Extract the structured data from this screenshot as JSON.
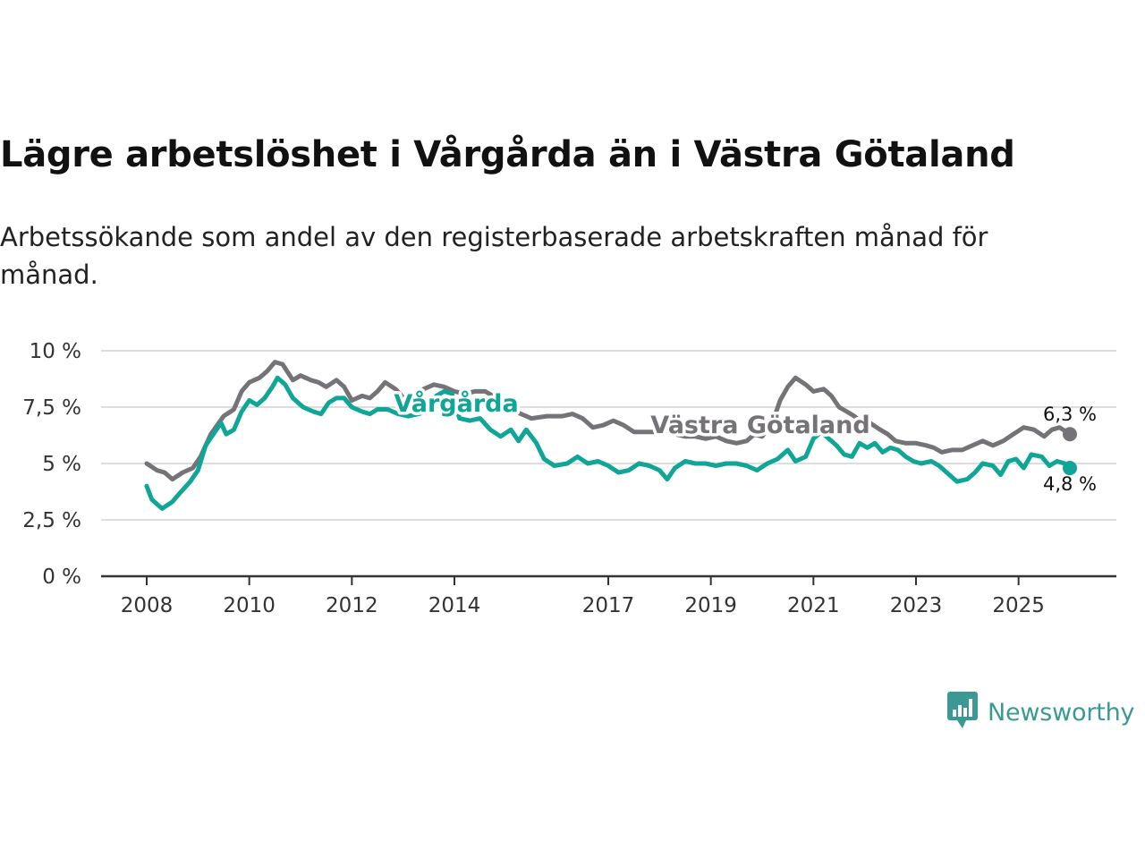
{
  "title": "Lägre arbetslöshet i Vårgårda än i Västra Götaland",
  "subtitle": "Arbetssökande som andel av den registerbaserade arbetskraften månad för månad.",
  "brand": {
    "name": "Newsworthy",
    "icon": "newsworthy-logo-icon"
  },
  "colors": {
    "vastra": "#757377",
    "vargarda": "#0fa697",
    "grid": "#dddddd",
    "axis": "#333333"
  },
  "chart_data": {
    "type": "line",
    "title": "Lägre arbetslöshet i Vårgårda än i Västra Götaland",
    "xlabel": "",
    "ylabel": "",
    "ylim": [
      0,
      10
    ],
    "xlim": [
      2008,
      2026.2
    ],
    "y_ticks": [
      {
        "value": 0,
        "label": "0 %"
      },
      {
        "value": 2.5,
        "label": "2,5 %"
      },
      {
        "value": 5,
        "label": "5 %"
      },
      {
        "value": 7.5,
        "label": "7,5 %"
      },
      {
        "value": 10,
        "label": "10 %"
      }
    ],
    "x_ticks": [
      {
        "value": 2008,
        "label": "2008"
      },
      {
        "value": 2010,
        "label": "2010"
      },
      {
        "value": 2012,
        "label": "2012"
      },
      {
        "value": 2014,
        "label": "2014"
      },
      {
        "value": 2017,
        "label": "2017"
      },
      {
        "value": 2019,
        "label": "2019"
      },
      {
        "value": 2021,
        "label": "2021"
      },
      {
        "value": 2023,
        "label": "2023"
      },
      {
        "value": 2025,
        "label": "2025"
      }
    ],
    "series": [
      {
        "name": "Västra Götaland",
        "color": "#757377",
        "end_label": "6,3 %",
        "points": [
          [
            2008,
            5.0
          ],
          [
            2008.2,
            4.7
          ],
          [
            2008.35,
            4.6
          ],
          [
            2008.5,
            4.3
          ],
          [
            2008.7,
            4.6
          ],
          [
            2008.9,
            4.8
          ],
          [
            2009.05,
            5.3
          ],
          [
            2009.25,
            6.3
          ],
          [
            2009.5,
            7.1
          ],
          [
            2009.7,
            7.4
          ],
          [
            2009.85,
            8.2
          ],
          [
            2010.0,
            8.6
          ],
          [
            2010.2,
            8.8
          ],
          [
            2010.35,
            9.1
          ],
          [
            2010.5,
            9.5
          ],
          [
            2010.65,
            9.4
          ],
          [
            2010.85,
            8.7
          ],
          [
            2011.0,
            8.9
          ],
          [
            2011.2,
            8.7
          ],
          [
            2011.35,
            8.6
          ],
          [
            2011.5,
            8.4
          ],
          [
            2011.7,
            8.7
          ],
          [
            2011.85,
            8.4
          ],
          [
            2012.0,
            7.8
          ],
          [
            2012.2,
            8.0
          ],
          [
            2012.35,
            7.9
          ],
          [
            2012.5,
            8.2
          ],
          [
            2012.65,
            8.6
          ],
          [
            2012.85,
            8.3
          ],
          [
            2013.05,
            7.8
          ],
          [
            2013.2,
            8.0
          ],
          [
            2013.4,
            8.3
          ],
          [
            2013.6,
            8.5
          ],
          [
            2013.8,
            8.4
          ],
          [
            2014.0,
            8.2
          ],
          [
            2014.2,
            8.1
          ],
          [
            2014.4,
            8.2
          ],
          [
            2014.6,
            8.2
          ],
          [
            2014.75,
            8.0
          ],
          [
            2014.9,
            7.6
          ],
          [
            2015.1,
            7.4
          ],
          [
            2015.3,
            7.2
          ],
          [
            2015.5,
            7.0
          ],
          [
            2015.8,
            7.1
          ],
          [
            2016.1,
            7.1
          ],
          [
            2016.3,
            7.2
          ],
          [
            2016.5,
            7.0
          ],
          [
            2016.7,
            6.6
          ],
          [
            2016.9,
            6.7
          ],
          [
            2017.1,
            6.9
          ],
          [
            2017.3,
            6.7
          ],
          [
            2017.5,
            6.4
          ],
          [
            2017.7,
            6.4
          ],
          [
            2017.9,
            6.4
          ],
          [
            2018.1,
            6.5
          ],
          [
            2018.3,
            6.3
          ],
          [
            2018.5,
            6.2
          ],
          [
            2018.7,
            6.2
          ],
          [
            2018.9,
            6.1
          ],
          [
            2019.1,
            6.2
          ],
          [
            2019.3,
            6.0
          ],
          [
            2019.5,
            5.9
          ],
          [
            2019.7,
            6.0
          ],
          [
            2019.85,
            6.3
          ],
          [
            2020.0,
            6.2
          ],
          [
            2020.2,
            6.8
          ],
          [
            2020.35,
            7.8
          ],
          [
            2020.5,
            8.4
          ],
          [
            2020.65,
            8.8
          ],
          [
            2020.85,
            8.5
          ],
          [
            2021.0,
            8.2
          ],
          [
            2021.2,
            8.3
          ],
          [
            2021.35,
            8.0
          ],
          [
            2021.5,
            7.5
          ],
          [
            2021.65,
            7.3
          ],
          [
            2021.8,
            7.1
          ],
          [
            2021.9,
            6.9
          ],
          [
            2022.1,
            6.8
          ],
          [
            2022.3,
            6.5
          ],
          [
            2022.45,
            6.3
          ],
          [
            2022.6,
            6.0
          ],
          [
            2022.8,
            5.9
          ],
          [
            2023.0,
            5.9
          ],
          [
            2023.2,
            5.8
          ],
          [
            2023.35,
            5.7
          ],
          [
            2023.5,
            5.5
          ],
          [
            2023.7,
            5.6
          ],
          [
            2023.9,
            5.6
          ],
          [
            2024.1,
            5.8
          ],
          [
            2024.3,
            6.0
          ],
          [
            2024.5,
            5.8
          ],
          [
            2024.7,
            6.0
          ],
          [
            2024.9,
            6.3
          ],
          [
            2025.1,
            6.6
          ],
          [
            2025.3,
            6.5
          ],
          [
            2025.5,
            6.2
          ],
          [
            2025.65,
            6.5
          ],
          [
            2025.8,
            6.6
          ],
          [
            2026.0,
            6.3
          ]
        ]
      },
      {
        "name": "Vårgårda",
        "color": "#0fa697",
        "end_label": "4,8 %",
        "points": [
          [
            2008,
            4.0
          ],
          [
            2008.1,
            3.4
          ],
          [
            2008.2,
            3.2
          ],
          [
            2008.3,
            3.0
          ],
          [
            2008.5,
            3.3
          ],
          [
            2008.65,
            3.7
          ],
          [
            2008.85,
            4.2
          ],
          [
            2009.0,
            4.7
          ],
          [
            2009.15,
            5.8
          ],
          [
            2009.3,
            6.3
          ],
          [
            2009.45,
            6.8
          ],
          [
            2009.55,
            6.3
          ],
          [
            2009.7,
            6.5
          ],
          [
            2009.85,
            7.3
          ],
          [
            2010.0,
            7.8
          ],
          [
            2010.15,
            7.6
          ],
          [
            2010.3,
            7.9
          ],
          [
            2010.45,
            8.4
          ],
          [
            2010.55,
            8.8
          ],
          [
            2010.7,
            8.5
          ],
          [
            2010.85,
            7.9
          ],
          [
            2011.05,
            7.5
          ],
          [
            2011.25,
            7.3
          ],
          [
            2011.4,
            7.2
          ],
          [
            2011.55,
            7.7
          ],
          [
            2011.7,
            7.9
          ],
          [
            2011.85,
            7.9
          ],
          [
            2012.0,
            7.5
          ],
          [
            2012.2,
            7.3
          ],
          [
            2012.35,
            7.2
          ],
          [
            2012.5,
            7.4
          ],
          [
            2012.7,
            7.4
          ],
          [
            2012.9,
            7.2
          ],
          [
            2013.1,
            7.1
          ],
          [
            2013.3,
            7.2
          ],
          [
            2013.45,
            7.3
          ],
          [
            2013.65,
            8.0
          ],
          [
            2013.8,
            8.2
          ],
          [
            2013.95,
            8.1
          ],
          [
            2014.1,
            7.0
          ],
          [
            2014.3,
            6.9
          ],
          [
            2014.5,
            7.0
          ],
          [
            2014.7,
            6.5
          ],
          [
            2014.9,
            6.2
          ],
          [
            2015.1,
            6.5
          ],
          [
            2015.25,
            6.0
          ],
          [
            2015.4,
            6.5
          ],
          [
            2015.6,
            5.9
          ],
          [
            2015.75,
            5.2
          ],
          [
            2015.95,
            4.9
          ],
          [
            2016.2,
            5.0
          ],
          [
            2016.4,
            5.3
          ],
          [
            2016.6,
            5.0
          ],
          [
            2016.8,
            5.1
          ],
          [
            2017.0,
            4.9
          ],
          [
            2017.2,
            4.6
          ],
          [
            2017.4,
            4.7
          ],
          [
            2017.6,
            5.0
          ],
          [
            2017.8,
            4.9
          ],
          [
            2018.0,
            4.7
          ],
          [
            2018.15,
            4.3
          ],
          [
            2018.3,
            4.8
          ],
          [
            2018.5,
            5.1
          ],
          [
            2018.7,
            5.0
          ],
          [
            2018.9,
            5.0
          ],
          [
            2019.1,
            4.9
          ],
          [
            2019.3,
            5.0
          ],
          [
            2019.5,
            5.0
          ],
          [
            2019.7,
            4.9
          ],
          [
            2019.9,
            4.7
          ],
          [
            2020.1,
            5.0
          ],
          [
            2020.3,
            5.2
          ],
          [
            2020.5,
            5.6
          ],
          [
            2020.65,
            5.1
          ],
          [
            2020.85,
            5.3
          ],
          [
            2021.0,
            6.1
          ],
          [
            2021.15,
            6.4
          ],
          [
            2021.3,
            6.1
          ],
          [
            2021.45,
            5.8
          ],
          [
            2021.6,
            5.4
          ],
          [
            2021.75,
            5.3
          ],
          [
            2021.9,
            5.9
          ],
          [
            2022.05,
            5.7
          ],
          [
            2022.2,
            5.9
          ],
          [
            2022.35,
            5.5
          ],
          [
            2022.5,
            5.7
          ],
          [
            2022.65,
            5.6
          ],
          [
            2022.8,
            5.3
          ],
          [
            2022.95,
            5.1
          ],
          [
            2023.1,
            5.0
          ],
          [
            2023.3,
            5.1
          ],
          [
            2023.45,
            4.9
          ],
          [
            2023.6,
            4.6
          ],
          [
            2023.8,
            4.2
          ],
          [
            2024.0,
            4.3
          ],
          [
            2024.15,
            4.6
          ],
          [
            2024.3,
            5.0
          ],
          [
            2024.5,
            4.9
          ],
          [
            2024.65,
            4.5
          ],
          [
            2024.8,
            5.1
          ],
          [
            2024.95,
            5.2
          ],
          [
            2025.1,
            4.8
          ],
          [
            2025.25,
            5.4
          ],
          [
            2025.45,
            5.3
          ],
          [
            2025.6,
            4.9
          ],
          [
            2025.75,
            5.1
          ],
          [
            2025.9,
            5.0
          ],
          [
            2026.0,
            4.8
          ]
        ]
      }
    ]
  }
}
